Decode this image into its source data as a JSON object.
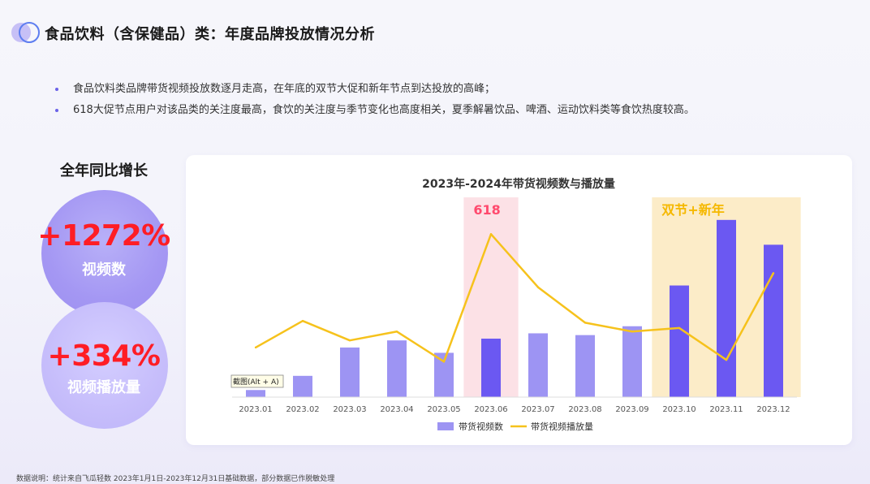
{
  "header": {
    "title": "食品饮料（含保健品）类：年度品牌投放情况分析"
  },
  "bullets": [
    "食品饮料类品牌带货视频投放数逐月走高，在年底的双节大促和新年节点到达投放的高峰；",
    "618大促节点用户对该品类的关注度最高，食饮的关注度与季节变化也高度相关，夏季解暑饮品、啤酒、运动饮料类等食饮热度较高。"
  ],
  "growth": {
    "title": "全年同比增长",
    "videos_value": "+1272%",
    "videos_label": "视频数",
    "plays_value": "+334%",
    "plays_label": "视频播放量"
  },
  "footnote": "数据说明：统计来自飞瓜轻数 2023年1月1日-2023年12月31日基础数据，部分数据已作脱敏处理",
  "chart_data": {
    "type": "bar",
    "title": "2023年-2024年带货视频数与播放量",
    "categories": [
      "2023.01",
      "2023.02",
      "2023.03",
      "2023.04",
      "2023.05",
      "2023.06",
      "2023.07",
      "2023.08",
      "2023.09",
      "2023.10",
      "2023.11",
      "2023.12"
    ],
    "series": [
      {
        "name": "带货视频数",
        "type": "bar",
        "values": [
          4,
          12,
          28,
          32,
          25,
          33,
          36,
          35,
          40,
          63,
          100,
          86
        ]
      },
      {
        "name": "带货视频播放量",
        "type": "line",
        "values": [
          28,
          43,
          32,
          37,
          20,
          92,
          62,
          42,
          37,
          39,
          21,
          70
        ]
      }
    ],
    "highlights": [
      {
        "label": "618",
        "category": "2023.06",
        "color": "#fce1e6",
        "label_color": "#ff4a6e"
      },
      {
        "label": "双节+新年",
        "from": "2023.10",
        "to": "2023.12",
        "color": "#fcecc8",
        "label_color": "#f5b800"
      }
    ],
    "overlay_tooltip": "截图(Alt + A)",
    "ylim": [
      0,
      110
    ],
    "xlabel": "",
    "ylabel": "",
    "grid": false,
    "legend_position": "bottom",
    "colors": {
      "bar_normal": "#9d94f3",
      "bar_highlight": "#6b58f2",
      "line": "#f6c21c"
    }
  }
}
